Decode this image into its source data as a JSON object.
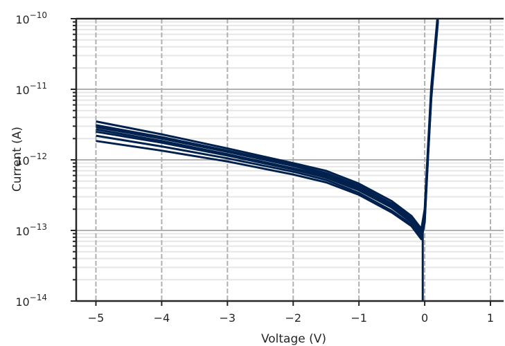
{
  "chart_data": {
    "type": "line",
    "title": "",
    "xlabel": "Voltage (V)",
    "ylabel": "Current (A)",
    "xlim": [
      -5.3,
      1.2
    ],
    "ylim": [
      1e-14,
      1e-10
    ],
    "yscale": "log",
    "grid": true,
    "legend": "none",
    "series_color": "#00204e",
    "x_ticks": [
      {
        "value": -5,
        "label": "−5"
      },
      {
        "value": -4,
        "label": "−4"
      },
      {
        "value": -3,
        "label": "−3"
      },
      {
        "value": -2,
        "label": "−2"
      },
      {
        "value": -1,
        "label": "−1"
      },
      {
        "value": 0,
        "label": "0"
      },
      {
        "value": 1,
        "label": "1"
      }
    ],
    "y_ticks": [
      {
        "value": 1e-14,
        "base": "10",
        "exp": "−14"
      },
      {
        "value": 1e-13,
        "base": "10",
        "exp": "−13"
      },
      {
        "value": 1e-12,
        "base": "10",
        "exp": "−12"
      },
      {
        "value": 1e-11,
        "base": "10",
        "exp": "−11"
      },
      {
        "value": 1e-10,
        "base": "10",
        "exp": "−10"
      }
    ],
    "series": [
      {
        "x": [
          -5,
          -4,
          -3,
          -2,
          -1.5,
          -1,
          -0.5,
          -0.2,
          -0.05,
          0,
          0.05,
          0.1,
          0.2
        ],
        "y": [
          3.5e-12,
          2.3e-12,
          1.45e-12,
          9e-13,
          7e-13,
          4.6e-13,
          2.6e-13,
          1.6e-13,
          1.05e-13,
          2e-13,
          1.5e-12,
          1.1e-11,
          1.2e-10
        ]
      },
      {
        "x": [
          -5,
          -4,
          -3,
          -2,
          -1.5,
          -1,
          -0.5,
          -0.2,
          -0.05,
          0,
          0.05,
          0.1,
          0.2
        ],
        "y": [
          3.1e-12,
          2.1e-12,
          1.35e-12,
          8.5e-13,
          6.5e-13,
          4.3e-13,
          2.4e-13,
          1.5e-13,
          1e-13,
          1.8e-13,
          1.3e-12,
          1e-11,
          1.1e-10
        ]
      },
      {
        "x": [
          -5,
          -4,
          -3,
          -2,
          -1.5,
          -1,
          -0.5,
          -0.2,
          -0.05,
          0,
          0.05,
          0.1,
          0.2
        ],
        "y": [
          2.9e-12,
          2e-12,
          1.3e-12,
          8.2e-13,
          6.2e-13,
          4.1e-13,
          2.3e-13,
          1.45e-13,
          9.5e-14,
          1.7e-13,
          1.25e-12,
          9.5e-12,
          1.05e-10
        ]
      },
      {
        "x": [
          -5,
          -4,
          -3,
          -2,
          -1.5,
          -1,
          -0.5,
          -0.2,
          -0.05,
          0,
          0.05,
          0.1,
          0.2
        ],
        "y": [
          2.7e-12,
          1.85e-12,
          1.2e-12,
          7.6e-13,
          5.9e-13,
          3.9e-13,
          2.2e-13,
          1.4e-13,
          9e-14,
          1.6e-13,
          1.2e-12,
          9e-12,
          1e-10
        ]
      },
      {
        "x": [
          -5,
          -4,
          -3,
          -2,
          -1.5,
          -1,
          -0.5,
          -0.2,
          -0.05,
          0,
          0.05,
          0.1,
          0.2
        ],
        "y": [
          2.5e-12,
          1.75e-12,
          1.15e-12,
          7.3e-13,
          5.6e-13,
          3.7e-13,
          2.1e-13,
          1.3e-13,
          8.5e-14,
          1.5e-13,
          1.15e-12,
          8.5e-12,
          1e-10
        ]
      },
      {
        "x": [
          -5,
          -4,
          -3,
          -2,
          -1.5,
          -1,
          -0.5,
          -0.2,
          -0.05,
          0,
          0.05,
          0.1,
          0.2
        ],
        "y": [
          2.2e-12,
          1.55e-12,
          1.05e-12,
          6.8e-13,
          5.2e-13,
          3.4e-13,
          1.9e-13,
          1.2e-13,
          8e-14,
          1.4e-13,
          1.1e-12,
          8e-12,
          9.5e-11
        ]
      },
      {
        "x": [
          -5,
          -4,
          -3,
          -2,
          -1.5,
          -1,
          -0.5,
          -0.2,
          -0.05,
          0,
          0.05,
          0.1,
          0.2
        ],
        "y": [
          1.85e-12,
          1.35e-12,
          9.5e-13,
          6.2e-13,
          4.8e-13,
          3.2e-13,
          1.8e-13,
          1.15e-13,
          7.5e-14,
          1.3e-13,
          1.05e-12,
          7.5e-12,
          9e-11
        ]
      }
    ]
  }
}
